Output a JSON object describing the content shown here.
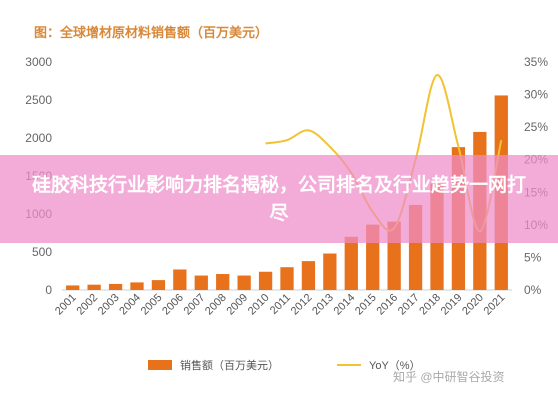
{
  "title": "图：全球增材原材料销售额（百万美元）",
  "overlay_headline": "硅胶科技行业影响力排名揭秘，公司排名及行业趋势一网打尽",
  "watermark": "知乎 @中研智谷投资",
  "colors": {
    "bar": "#e8711c",
    "line": "#f1c232",
    "title": "#d8893a",
    "overlay": "#ee8cc8"
  },
  "chart_data": {
    "type": "bar",
    "categories": [
      "2001",
      "2002",
      "2003",
      "2004",
      "2005",
      "2006",
      "2007",
      "2008",
      "2009",
      "2010",
      "2011",
      "2012",
      "2013",
      "2014",
      "2015",
      "2016",
      "2017",
      "2018",
      "2019",
      "2020",
      "2021"
    ],
    "series": [
      {
        "name": "销售额（百万美元）",
        "type": "bar",
        "axis": "left",
        "values": [
          60,
          70,
          80,
          100,
          130,
          270,
          190,
          210,
          190,
          240,
          300,
          380,
          480,
          700,
          860,
          900,
          1120,
          1400,
          1880,
          2080,
          2560
        ]
      },
      {
        "name": "YoY（%）",
        "type": "line",
        "axis": "right",
        "x": [
          "2010",
          "2011",
          "2012",
          "2013",
          "2014",
          "2015",
          "2016",
          "2017",
          "2018",
          "2019",
          "2020",
          "2021"
        ],
        "values": [
          22.5,
          23,
          24.5,
          22,
          18,
          12,
          9.5,
          20,
          33,
          22,
          9,
          23
        ]
      }
    ],
    "y_left": {
      "min": 0,
      "max": 3000,
      "ticks": [
        "0",
        "500",
        "1000",
        "1500",
        "2000",
        "2500",
        "3000"
      ]
    },
    "y_right": {
      "min": 0,
      "max": 35,
      "ticks": [
        "0%",
        "5%",
        "10%",
        "15%",
        "20%",
        "25%",
        "30%",
        "35%"
      ]
    },
    "legend_position": "bottom",
    "grid": false
  }
}
